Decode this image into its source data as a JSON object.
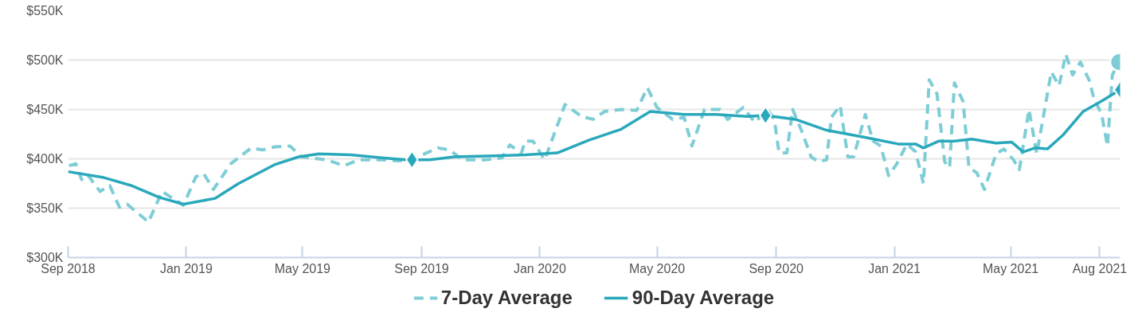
{
  "chart_data": {
    "type": "line",
    "xlim": [
      "2018-09-01",
      "2021-08-22"
    ],
    "xticks": [
      {
        "value": "2018-09-01",
        "label": "Sep 2018"
      },
      {
        "value": "2019-01-01",
        "label": "Jan 2019"
      },
      {
        "value": "2019-05-01",
        "label": "May 2019"
      },
      {
        "value": "2019-09-01",
        "label": "Sep 2019"
      },
      {
        "value": "2020-01-01",
        "label": "Jan 2020"
      },
      {
        "value": "2020-05-01",
        "label": "May 2020"
      },
      {
        "value": "2020-09-01",
        "label": "Sep 2020"
      },
      {
        "value": "2021-01-01",
        "label": "Jan 2021"
      },
      {
        "value": "2021-05-01",
        "label": "May 2021"
      },
      {
        "value": "2021-08-01",
        "label": "Aug 2021"
      }
    ],
    "ylim": [
      300,
      550
    ],
    "yticks": [
      {
        "value": 300,
        "label": "$300K"
      },
      {
        "value": 350,
        "label": "$350K"
      },
      {
        "value": 400,
        "label": "$400K"
      },
      {
        "value": 450,
        "label": "$450K"
      },
      {
        "value": 500,
        "label": "$500K"
      },
      {
        "value": 550,
        "label": "$550K"
      }
    ],
    "grid": "y",
    "legend": "bottom",
    "series": [
      {
        "name": "7-Day Average",
        "color": "#7ecdd6",
        "line_style": "dashed",
        "x": [
          "2018-09-02",
          "2018-09-09",
          "2018-09-15",
          "2018-09-21",
          "2018-10-04",
          "2018-10-14",
          "2018-10-24",
          "2018-11-01",
          "2018-11-23",
          "2018-12-07",
          "2018-12-29",
          "2019-01-11",
          "2019-01-19",
          "2019-01-29",
          "2019-02-16",
          "2019-03-09",
          "2019-03-21",
          "2019-04-02",
          "2019-04-18",
          "2019-04-30",
          "2019-05-26",
          "2019-06-13",
          "2019-06-28",
          "2019-07-22",
          "2019-08-08",
          "2019-08-23",
          "2019-09-06",
          "2019-09-18",
          "2019-09-30",
          "2019-10-13",
          "2019-11-06",
          "2019-11-23",
          "2019-12-01",
          "2019-12-13",
          "2019-12-17",
          "2019-12-25",
          "2020-01-06",
          "2020-01-27",
          "2020-02-13",
          "2020-02-25",
          "2020-03-08",
          "2020-03-25",
          "2020-04-10",
          "2020-04-21",
          "2020-05-01",
          "2020-05-17",
          "2020-05-29",
          "2020-06-06",
          "2020-06-19",
          "2020-07-05",
          "2020-07-13",
          "2020-07-29",
          "2020-08-10",
          "2020-08-23",
          "2020-08-30",
          "2020-09-04",
          "2020-09-12",
          "2020-09-18",
          "2020-09-27",
          "2020-10-07",
          "2020-10-15",
          "2020-10-23",
          "2020-10-28",
          "2020-11-06",
          "2020-11-14",
          "2020-11-20",
          "2020-12-02",
          "2020-12-10",
          "2020-12-18",
          "2020-12-26",
          "2021-01-03",
          "2021-01-14",
          "2021-01-23",
          "2021-01-31",
          "2021-02-06",
          "2021-02-14",
          "2021-02-22",
          "2021-02-27",
          "2021-03-04",
          "2021-03-13",
          "2021-03-19",
          "2021-03-27",
          "2021-04-04",
          "2021-04-16",
          "2021-04-24",
          "2021-05-04",
          "2021-05-10",
          "2021-05-20",
          "2021-05-28",
          "2021-06-12",
          "2021-06-20",
          "2021-06-27",
          "2021-07-04",
          "2021-07-12",
          "2021-07-21",
          "2021-07-26",
          "2021-08-03",
          "2021-08-09",
          "2021-08-14",
          "2021-08-21"
        ],
        "values": [
          393,
          395,
          379,
          384,
          367,
          373,
          351,
          354,
          336,
          367,
          353,
          382,
          385,
          369,
          395,
          411,
          409,
          412,
          413,
          402,
          399,
          393,
          399,
          399,
          398,
          399,
          406,
          411,
          409,
          399,
          399,
          401,
          414,
          406,
          418,
          418,
          399,
          455,
          443,
          440,
          448,
          450,
          449,
          472,
          452,
          440,
          442,
          413,
          450,
          450,
          440,
          452,
          437,
          450,
          440,
          406,
          406,
          450,
          429,
          402,
          397,
          399,
          442,
          454,
          402,
          402,
          445,
          418,
          413,
          383,
          394,
          415,
          407,
          375,
          480,
          466,
          397,
          391,
          477,
          458,
          391,
          386,
          369,
          405,
          410,
          399,
          389,
          450,
          405,
          488,
          474,
          506,
          485,
          498,
          480,
          461,
          445,
          413,
          485,
          498
        ]
      },
      {
        "name": "90-Day Average",
        "color": "#2aa8bb",
        "line_style": "solid",
        "x": [
          "2018-09-01",
          "2018-10-08",
          "2018-11-05",
          "2018-12-04",
          "2018-12-29",
          "2019-01-31",
          "2019-02-24",
          "2019-04-02",
          "2019-04-27",
          "2019-05-18",
          "2019-06-20",
          "2019-07-22",
          "2019-08-16",
          "2019-08-22",
          "2019-09-09",
          "2019-10-05",
          "2019-11-14",
          "2019-12-17",
          "2020-01-19",
          "2020-02-21",
          "2020-03-25",
          "2020-04-24",
          "2020-05-29",
          "2020-07-01",
          "2020-08-02",
          "2020-08-21",
          "2020-09-21",
          "2020-10-23",
          "2020-11-25",
          "2020-12-11",
          "2021-01-05",
          "2021-01-23",
          "2021-01-31",
          "2021-02-16",
          "2021-03-04",
          "2021-03-22",
          "2021-04-16",
          "2021-05-02",
          "2021-05-14",
          "2021-05-26",
          "2021-06-08",
          "2021-06-24",
          "2021-07-15",
          "2021-08-04",
          "2021-08-22"
        ],
        "values": [
          387,
          381,
          373,
          361,
          354,
          360,
          375,
          394,
          402,
          405,
          404,
          401,
          399,
          399,
          399,
          402,
          403,
          404,
          406,
          419,
          430,
          448,
          445,
          445,
          443,
          444,
          440,
          429,
          423,
          420,
          415,
          415,
          411,
          418,
          418,
          420,
          416,
          417,
          407,
          411,
          410,
          424,
          448,
          459,
          470
        ]
      },
      {
        "type": "scatter",
        "marker": "diamond",
        "color": "#2aa8bb",
        "x": [
          "2019-08-22",
          "2020-08-21",
          "2021-08-22"
        ],
        "values": [
          399,
          444,
          470
        ]
      },
      {
        "type": "scatter",
        "marker": "circle",
        "color": "#7ecdd6",
        "x": [
          "2021-08-21"
        ],
        "values": [
          498
        ]
      }
    ]
  }
}
